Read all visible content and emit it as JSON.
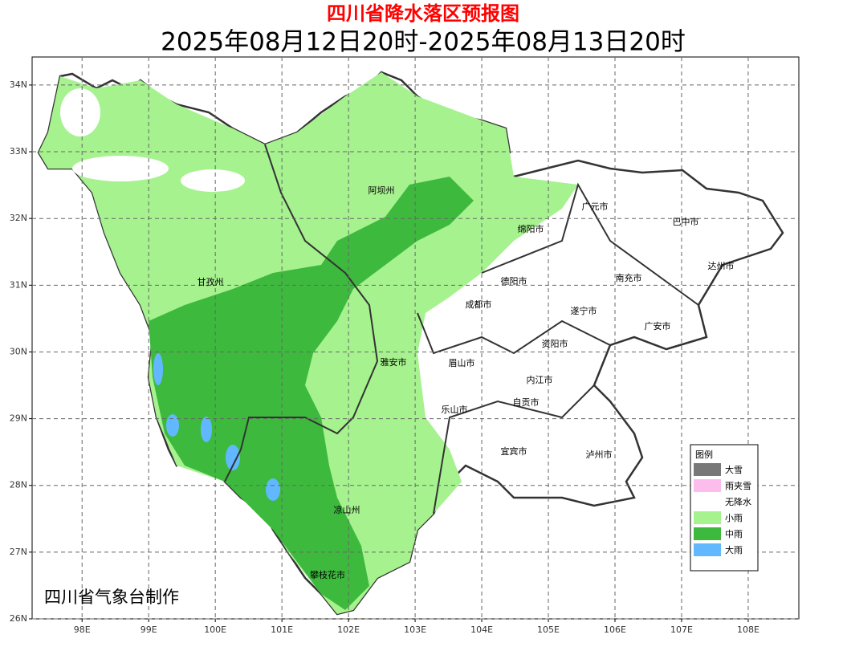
{
  "header": {
    "title": "四川省降水落区预报图",
    "subtitle": "2025年08月12日20时-2025年08月13日20时"
  },
  "map": {
    "xlim": [
      97.25,
      108.76
    ],
    "ylim": [
      26,
      34.42
    ],
    "xticks": [
      {
        "value": 98,
        "label": "98E"
      },
      {
        "value": 99,
        "label": "99E"
      },
      {
        "value": 100,
        "label": "100E"
      },
      {
        "value": 101,
        "label": "101E"
      },
      {
        "value": 102,
        "label": "102E"
      },
      {
        "value": 103,
        "label": "103E"
      },
      {
        "value": 104,
        "label": "104E"
      },
      {
        "value": 105,
        "label": "105E"
      },
      {
        "value": 106,
        "label": "106E"
      },
      {
        "value": 107,
        "label": "107E"
      },
      {
        "value": 108,
        "label": "108E"
      }
    ],
    "yticks": [
      {
        "value": 26,
        "label": "26N"
      },
      {
        "value": 27,
        "label": "27N"
      },
      {
        "value": 28,
        "label": "28N"
      },
      {
        "value": 29,
        "label": "29N"
      },
      {
        "value": 30,
        "label": "30N"
      },
      {
        "value": 31,
        "label": "31N"
      },
      {
        "value": 32,
        "label": "32N"
      },
      {
        "value": 33,
        "label": "33N"
      },
      {
        "value": 34,
        "label": "34N"
      }
    ],
    "grid": true,
    "regions": [
      "阿坝州",
      "甘孜州",
      "广元市",
      "巴中市",
      "绵阳市",
      "达州市",
      "德阳市",
      "南充市",
      "成都市",
      "遂宁市",
      "广安市",
      "资阳市",
      "雅安市",
      "眉山市",
      "内江市",
      "乐山市",
      "自贡市",
      "宜宾市",
      "泸州市",
      "凉山州",
      "攀枝花市"
    ]
  },
  "legend": {
    "title": "图例",
    "items": [
      {
        "label": "大雪",
        "color": "#787878"
      },
      {
        "label": "雨夹雪",
        "color": "#fcbcec"
      },
      {
        "label": "无降水",
        "color": "#ffffff"
      },
      {
        "label": "小雨",
        "color": "#a6f28f"
      },
      {
        "label": "中雨",
        "color": "#3dba3d"
      },
      {
        "label": "大雨",
        "color": "#61b8ff"
      }
    ]
  },
  "credit": "四川省气象台制作"
}
